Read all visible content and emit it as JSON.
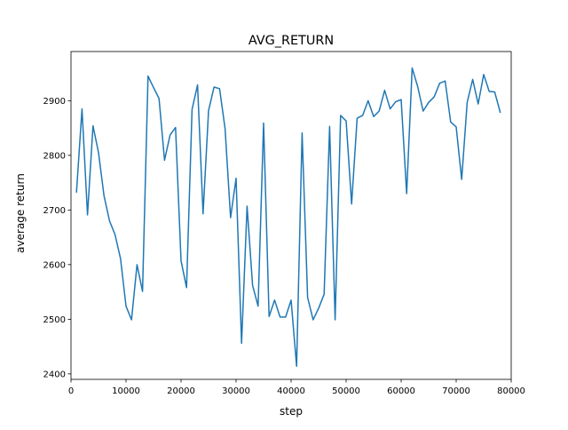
{
  "chart_data": {
    "type": "line",
    "title": "AVG_RETURN",
    "xlabel": "step",
    "ylabel": "average return",
    "xlim": [
      0,
      80000
    ],
    "ylim": [
      2390,
      2990
    ],
    "x_ticks": [
      0,
      10000,
      20000,
      30000,
      40000,
      50000,
      60000,
      70000,
      80000
    ],
    "y_ticks": [
      2400,
      2500,
      2600,
      2700,
      2800,
      2900
    ],
    "grid": false,
    "legend": "none",
    "line_color": "#1f77b4",
    "series": [
      {
        "x": [
          1000,
          2000,
          3000,
          4000,
          5000,
          6000,
          7000,
          8000,
          9000,
          10000,
          11000,
          12000,
          13000,
          14000,
          15000,
          16000,
          17000,
          18000,
          19000,
          20000,
          21000,
          22000,
          23000,
          24000,
          25000,
          26000,
          27000,
          28000,
          29000,
          30000,
          31000,
          32000,
          33000,
          34000,
          35000,
          36000,
          37000,
          38000,
          39000,
          40000,
          41000,
          42000,
          43000,
          44000,
          45000,
          46000,
          47000,
          48000,
          49000,
          50000,
          51000,
          52000,
          53000,
          54000,
          55000,
          56000,
          57000,
          58000,
          59000,
          60000,
          61000,
          62000,
          63000,
          64000,
          65000,
          66000,
          67000,
          68000,
          69000,
          70000,
          71000,
          72000,
          73000,
          74000,
          75000,
          76000,
          77000,
          78000
        ],
        "y": [
          2733,
          2885,
          2691,
          2854,
          2805,
          2726,
          2680,
          2655,
          2611,
          2524,
          2499,
          2600,
          2551,
          2945,
          2924,
          2904,
          2791,
          2837,
          2851,
          2607,
          2558,
          2884,
          2929,
          2693,
          2882,
          2925,
          2922,
          2849,
          2686,
          2758,
          2456,
          2707,
          2562,
          2524,
          2859,
          2505,
          2535,
          2504,
          2504,
          2535,
          2414,
          2841,
          2540,
          2499,
          2520,
          2546,
          2853,
          2499,
          2873,
          2863,
          2711,
          2868,
          2873,
          2900,
          2871,
          2881,
          2919,
          2885,
          2898,
          2902,
          2730,
          2960,
          2926,
          2881,
          2897,
          2907,
          2932,
          2936,
          2861,
          2852,
          2756,
          2897,
          2939,
          2894,
          2948,
          2917,
          2916,
          2879
        ]
      }
    ]
  }
}
